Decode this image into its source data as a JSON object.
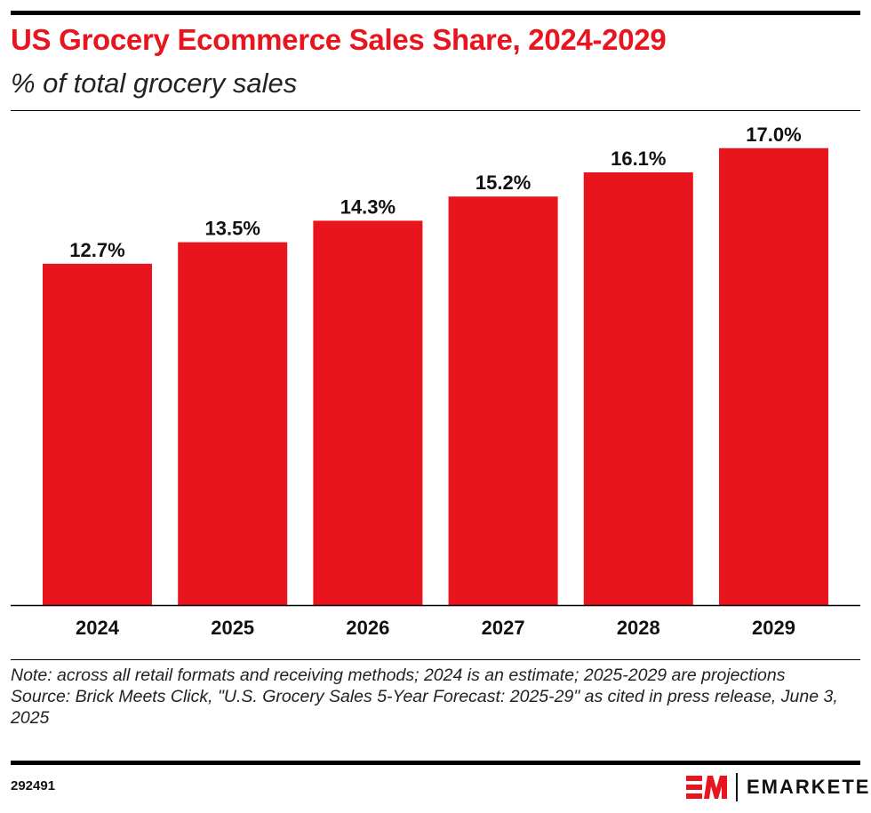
{
  "chart_data": {
    "type": "bar",
    "title": "US Grocery Ecommerce Sales Share, 2024-2029",
    "subtitle": "% of total grocery sales",
    "categories": [
      "2024",
      "2025",
      "2026",
      "2027",
      "2028",
      "2029"
    ],
    "values": [
      12.7,
      13.5,
      14.3,
      15.2,
      16.1,
      17.0
    ],
    "data_labels": [
      "12.7%",
      "13.5%",
      "14.3%",
      "15.2%",
      "16.1%",
      "17.0%"
    ],
    "xlabel": "",
    "ylabel": "",
    "ylim": [
      0,
      18
    ],
    "grid": false,
    "bar_color": "#e8141e"
  },
  "footer": {
    "note": "Note: across all retail formats and receiving methods; 2024 is an estimate; 2025-2029 are projections",
    "source": "Source: Brick Meets Click, \"U.S. Grocery Sales 5-Year Forecast: 2025-29\" as cited in press release, June 3, 2025",
    "chart_id": "292491",
    "brand": "EMARKETER"
  }
}
